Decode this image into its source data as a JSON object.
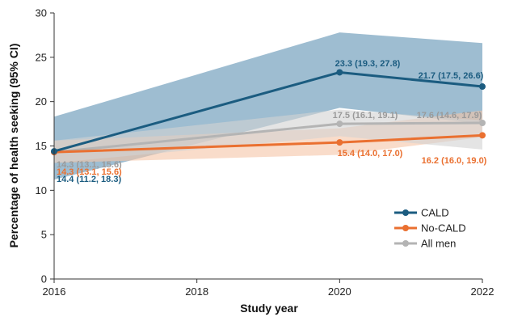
{
  "chart_data": {
    "type": "line",
    "title": "",
    "xlabel": "Study year",
    "ylabel": "Percentage of health seeking (95% CI)",
    "x": [
      2016,
      2020,
      2022
    ],
    "xticks": [
      "2016",
      "2018",
      "2020",
      "2022"
    ],
    "xlim": [
      2016,
      2022
    ],
    "ylim": [
      0,
      30
    ],
    "yticks": [
      "0",
      "5",
      "10",
      "15",
      "20",
      "25",
      "30"
    ],
    "grid": false,
    "legend_position": "bottom-right",
    "series": [
      {
        "name": "CALD",
        "color": "#1b5c80",
        "band_color": "#7ea7c1",
        "values": [
          14.4,
          23.3,
          21.7
        ],
        "lower": [
          11.2,
          19.3,
          17.5
        ],
        "upper": [
          18.3,
          27.8,
          26.6
        ],
        "labels": [
          "14.4 (11.2, 18.3)",
          "23.3 (19.3, 27.8)",
          "21.7 (17.5, 26.6)"
        ]
      },
      {
        "name": "No-CALD",
        "color": "#ea7030",
        "band_color": "#f5c5a6",
        "values": [
          14.3,
          15.4,
          16.2
        ],
        "lower": [
          13.1,
          14.0,
          16.0
        ],
        "upper": [
          15.6,
          17.0,
          19.0
        ],
        "labels": [
          "14.3 (13.1, 15.6)",
          "15.4 (14.0, 17.0)",
          "16.2 (16.0, 19.0)"
        ]
      },
      {
        "name": "All men",
        "color": "#b4b4b4",
        "band_color": "#d2d2d2",
        "values": [
          14.3,
          17.5,
          17.6
        ],
        "lower": [
          13.1,
          16.1,
          14.6
        ],
        "upper": [
          15.6,
          19.1,
          17.9
        ],
        "labels": [
          "14.3 (13.1, 15.6)",
          "17.5 (16.1, 19.1)",
          "17.6 (14.6, 17.9)"
        ]
      }
    ]
  }
}
